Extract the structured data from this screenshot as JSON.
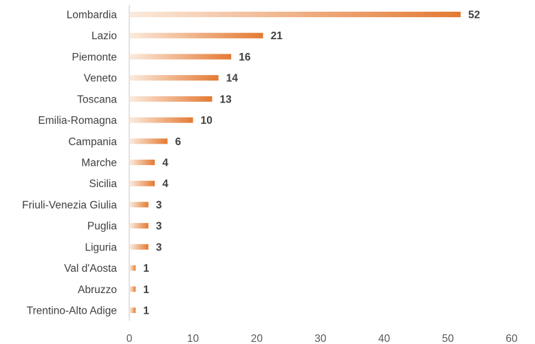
{
  "chart_data": {
    "type": "bar",
    "orientation": "horizontal",
    "title": "",
    "xlabel": "",
    "ylabel": "",
    "categories": [
      "Lombardia",
      "Lazio",
      "Piemonte",
      "Veneto",
      "Toscana",
      "Emilia-Romagna",
      "Campania",
      "Marche",
      "Sicilia",
      "Friuli-Venezia Giulia",
      "Puglia",
      "Liguria",
      "Val d'Aosta",
      "Abruzzo",
      "Trentino-Alto Adige"
    ],
    "values": [
      52,
      21,
      16,
      14,
      13,
      10,
      6,
      4,
      4,
      3,
      3,
      3,
      1,
      1,
      1
    ],
    "xlim": [
      0,
      60
    ],
    "xticks": [
      "0",
      "10",
      "20",
      "30",
      "40",
      "50",
      "60"
    ],
    "grid": false,
    "data_labels": true,
    "bar_fill": "gradient",
    "colors": {
      "bar_start": "#fbeadc",
      "bar_end": "#e47a33",
      "axis": "#d9d9d9",
      "text": "#404040"
    }
  }
}
